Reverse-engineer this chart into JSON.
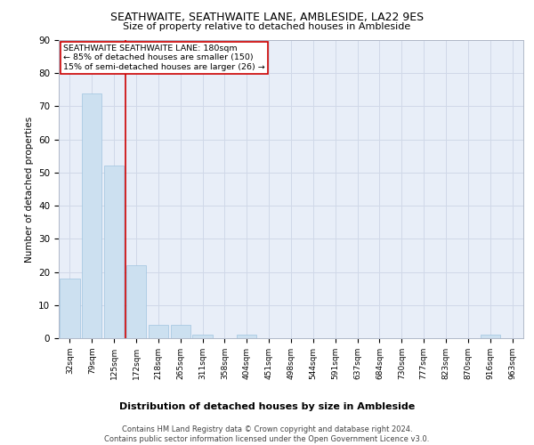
{
  "title": "SEATHWAITE, SEATHWAITE LANE, AMBLESIDE, LA22 9ES",
  "subtitle": "Size of property relative to detached houses in Ambleside",
  "xlabel": "Distribution of detached houses by size in Ambleside",
  "ylabel": "Number of detached properties",
  "bin_labels": [
    "32sqm",
    "79sqm",
    "125sqm",
    "172sqm",
    "218sqm",
    "265sqm",
    "311sqm",
    "358sqm",
    "404sqm",
    "451sqm",
    "498sqm",
    "544sqm",
    "591sqm",
    "637sqm",
    "684sqm",
    "730sqm",
    "777sqm",
    "823sqm",
    "870sqm",
    "916sqm",
    "963sqm"
  ],
  "bar_heights": [
    18,
    74,
    52,
    22,
    4,
    4,
    1,
    0,
    1,
    0,
    0,
    0,
    0,
    0,
    0,
    0,
    0,
    0,
    0,
    1,
    0
  ],
  "bar_color": "#cce0f0",
  "bar_edgecolor": "#a0c4e0",
  "vline_x": 2.5,
  "vline_color": "#cc0000",
  "annotation_text": "SEATHWAITE SEATHWAITE LANE: 180sqm\n← 85% of detached houses are smaller (150)\n15% of semi-detached houses are larger (26) →",
  "annotation_box_edgecolor": "#cc0000",
  "annotation_box_facecolor": "#ffffff",
  "ylim": [
    0,
    90
  ],
  "yticks": [
    0,
    10,
    20,
    30,
    40,
    50,
    60,
    70,
    80,
    90
  ],
  "grid_color": "#d0d8e8",
  "bg_color": "#e8eef8",
  "footer": "Contains HM Land Registry data © Crown copyright and database right 2024.\nContains public sector information licensed under the Open Government Licence v3.0.",
  "title_fontsize": 9,
  "subtitle_fontsize": 8,
  "footer_fontsize": 6
}
